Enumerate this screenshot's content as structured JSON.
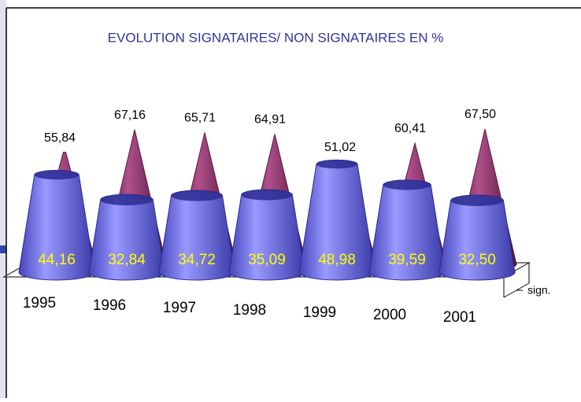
{
  "chart_data": {
    "type": "cone3d",
    "title": "EVOLUTION SIGNATAIRES/ NON SIGNATAIRES EN %",
    "categories": [
      "1995",
      "1996",
      "1997",
      "1998",
      "1999",
      "2000",
      "2001"
    ],
    "series": [
      {
        "name": "sign.",
        "color": "#7777ee",
        "values": [
          44.16,
          32.84,
          34.72,
          35.09,
          48.98,
          39.59,
          32.5
        ],
        "value_labels": [
          "44,16",
          "32,84",
          "34,72",
          "35,09",
          "48,98",
          "39,59",
          "32,50"
        ]
      },
      {
        "color": "#993366",
        "values": [
          55.84,
          67.16,
          65.71,
          64.91,
          51.02,
          60.41,
          67.5
        ],
        "value_labels": [
          "55,84",
          "67,16",
          "65,71",
          "64,91",
          "51,02",
          "60,41",
          "67,50"
        ]
      }
    ]
  }
}
